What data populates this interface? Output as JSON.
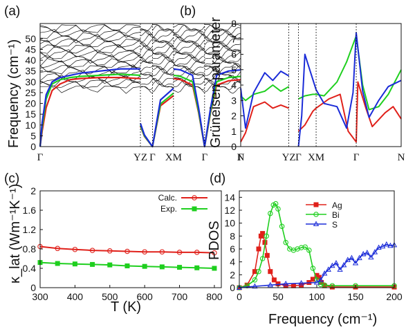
{
  "colors": {
    "red": "#e0201a",
    "green": "#1fcf1f",
    "blue": "#1a2bd8",
    "black": "#111111"
  },
  "chart_data": [
    {
      "panel": "(a)",
      "type": "line",
      "ylabel": "Frequency (cm⁻¹)",
      "ylim": [
        0,
        57
      ],
      "yticks": [
        "0",
        "5",
        "10",
        "15",
        "20",
        "25",
        "30",
        "35",
        "40",
        "45",
        "50"
      ],
      "xticks": [
        "Γ",
        "YZ",
        "Γ",
        "XM",
        "Γ",
        "N"
      ],
      "xticks_pos": [
        0,
        0.5,
        0.56,
        0.665,
        0.82,
        1.0
      ],
      "series": [
        {
          "color": "red",
          "x": [
            0,
            0.01,
            0.03,
            0.06,
            0.1,
            0.15,
            0.2,
            0.3,
            0.4,
            0.5
          ],
          "values": [
            0,
            7,
            18,
            26,
            29,
            31,
            31.5,
            32,
            32,
            31.5
          ]
        },
        {
          "color": "green",
          "x": [
            0,
            0.01,
            0.03,
            0.06,
            0.1,
            0.15,
            0.2,
            0.3,
            0.4,
            0.5
          ],
          "values": [
            0,
            9,
            22,
            29,
            31,
            32,
            32.5,
            33,
            33.5,
            33
          ]
        },
        {
          "color": "blue",
          "x": [
            0,
            0.01,
            0.03,
            0.06,
            0.1,
            0.15,
            0.2,
            0.3,
            0.4,
            0.5
          ],
          "values": [
            0,
            11,
            24,
            30,
            32,
            33,
            34,
            35,
            36,
            36
          ]
        }
      ]
    },
    {
      "panel": "(b)",
      "type": "line",
      "ylabel": "Grüneisen parameter",
      "ylim": [
        0,
        8
      ],
      "yticks": [
        "0",
        "1",
        "2",
        "3",
        "4",
        "5",
        "6",
        "7",
        "8"
      ],
      "xticks": [
        "Γ",
        "YZ",
        "Γ",
        "XM",
        "Γ",
        "N"
      ],
      "xticks_pos": [
        0,
        0.3,
        0.36,
        0.47,
        0.72,
        1.0
      ],
      "series": [
        {
          "color": "red",
          "x": [
            0,
            0.03,
            0.08,
            0.15,
            0.2,
            0.25,
            0.3
          ],
          "values": [
            0.3,
            0.9,
            2.6,
            2.9,
            2.5,
            2.7,
            2.5
          ]
        },
        {
          "color": "green",
          "x": [
            0,
            0.03,
            0.08,
            0.15,
            0.2,
            0.25,
            0.3
          ],
          "values": [
            3.3,
            3.0,
            3.4,
            3.6,
            4.0,
            3.6,
            3.9
          ]
        },
        {
          "color": "blue",
          "x": [
            0,
            0.03,
            0.08,
            0.15,
            0.2,
            0.25,
            0.3
          ],
          "values": [
            3.8,
            1.2,
            3.5,
            4.8,
            4.3,
            4.9,
            4.6
          ]
        }
      ]
    },
    {
      "panel": "(c)",
      "type": "line",
      "ylabel": "κ_lat (Wm⁻¹K⁻¹)",
      "xlabel": "T (K)",
      "ylim": [
        0,
        2.0
      ],
      "xlim": [
        300,
        820
      ],
      "yticks": [
        "0",
        "0.4",
        "0.8",
        "1.2",
        "1.6",
        "2"
      ],
      "xticks": [
        "300",
        "400",
        "500",
        "600",
        "700",
        "800"
      ],
      "legend": "top-right",
      "series": [
        {
          "name": "Calc.",
          "color": "red",
          "marker": "circle",
          "x": [
            300,
            350,
            400,
            450,
            500,
            550,
            600,
            650,
            700,
            750,
            800
          ],
          "values": [
            0.85,
            0.81,
            0.79,
            0.77,
            0.76,
            0.75,
            0.74,
            0.74,
            0.73,
            0.73,
            0.72
          ]
        },
        {
          "name": "Exp.",
          "color": "green",
          "marker": "square",
          "x": [
            300,
            350,
            400,
            450,
            500,
            550,
            600,
            650,
            700,
            750,
            800
          ],
          "values": [
            0.52,
            0.5,
            0.49,
            0.48,
            0.47,
            0.45,
            0.44,
            0.43,
            0.42,
            0.41,
            0.4
          ]
        }
      ]
    },
    {
      "panel": "(d)",
      "type": "line",
      "ylabel": "PDOS",
      "xlabel": "Frequency (cm⁻¹)",
      "ylim": [
        0,
        15
      ],
      "xlim": [
        0,
        200
      ],
      "yticks": [
        "0",
        "2",
        "4",
        "6",
        "8",
        "10",
        "12",
        "14"
      ],
      "xticks": [
        "0",
        "50",
        "100",
        "150",
        "200"
      ],
      "legend": "top-center",
      "series": [
        {
          "name": "Ag",
          "color": "red",
          "marker": "square",
          "x": [
            0,
            10,
            20,
            25,
            28,
            30,
            33,
            36,
            40,
            45,
            50,
            60,
            70,
            80,
            90,
            95,
            100,
            103,
            106,
            110,
            120,
            150,
            200
          ],
          "values": [
            0,
            0.4,
            2.5,
            6,
            8,
            8.4,
            7,
            5,
            2.5,
            1.2,
            0.6,
            0.3,
            0.3,
            0.4,
            0.8,
            1.3,
            1.9,
            1.6,
            0.8,
            0.3,
            0.1,
            0.1,
            0.1
          ]
        },
        {
          "name": "Bi",
          "color": "green",
          "marker": "circle",
          "x": [
            0,
            10,
            20,
            25,
            30,
            35,
            40,
            44,
            47,
            50,
            55,
            60,
            65,
            70,
            75,
            80,
            85,
            90,
            95,
            100,
            105,
            110,
            120,
            150,
            200
          ],
          "values": [
            0,
            0.3,
            1.2,
            2.5,
            4.5,
            8,
            11.5,
            12.8,
            13,
            12.2,
            9.5,
            7,
            6,
            5.8,
            6,
            6.2,
            6.3,
            5.8,
            3,
            1.2,
            0.5,
            0.4,
            0.3,
            0.3,
            0.3
          ]
        },
        {
          "name": "S",
          "color": "blue",
          "marker": "triangle",
          "x": [
            0,
            20,
            40,
            60,
            80,
            100,
            105,
            110,
            115,
            120,
            125,
            130,
            135,
            140,
            145,
            150,
            155,
            160,
            165,
            170,
            175,
            180,
            185,
            190,
            195,
            200
          ],
          "values": [
            0,
            0.2,
            0.4,
            0.6,
            0.7,
            0.8,
            1.2,
            2.2,
            2.8,
            3.4,
            3.8,
            2.8,
            3.5,
            4.3,
            4.6,
            3.8,
            4.6,
            5.2,
            5.4,
            4.7,
            5.5,
            6.2,
            6.4,
            6.7,
            6.5,
            6.6
          ]
        }
      ]
    }
  ]
}
